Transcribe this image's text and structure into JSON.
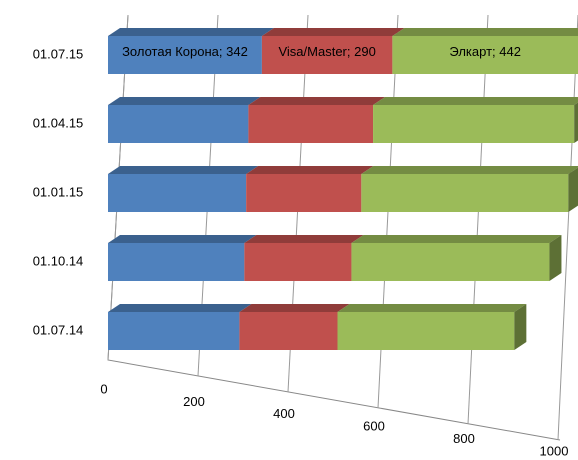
{
  "chart_data": {
    "type": "bar",
    "orientation": "horizontal",
    "stacked": true,
    "grid": true,
    "categories": [
      "01.07.15",
      "01.04.15",
      "01.01.15",
      "01.10.14",
      "01.07.14"
    ],
    "series": [
      {
        "color": "#4f81bd",
        "values": [
          342,
          312,
          307,
          303,
          292
        ],
        "value_labels": [
          "Золотая Корона; 342",
          null,
          null,
          null,
          null
        ]
      },
      {
        "color": "#c0504d",
        "values": [
          290,
          277,
          256,
          238,
          218
        ],
        "value_labels": [
          "Visa/Master; 290",
          null,
          null,
          null,
          null
        ]
      },
      {
        "color": "#9bbb59",
        "values": [
          442,
          447,
          460,
          440,
          393
        ],
        "value_labels": [
          "Элкарт; 442",
          null,
          null,
          null,
          null
        ]
      }
    ],
    "xlim": [
      0,
      1000
    ],
    "xticks": [
      0,
      200,
      400,
      600,
      800,
      1000
    ]
  }
}
